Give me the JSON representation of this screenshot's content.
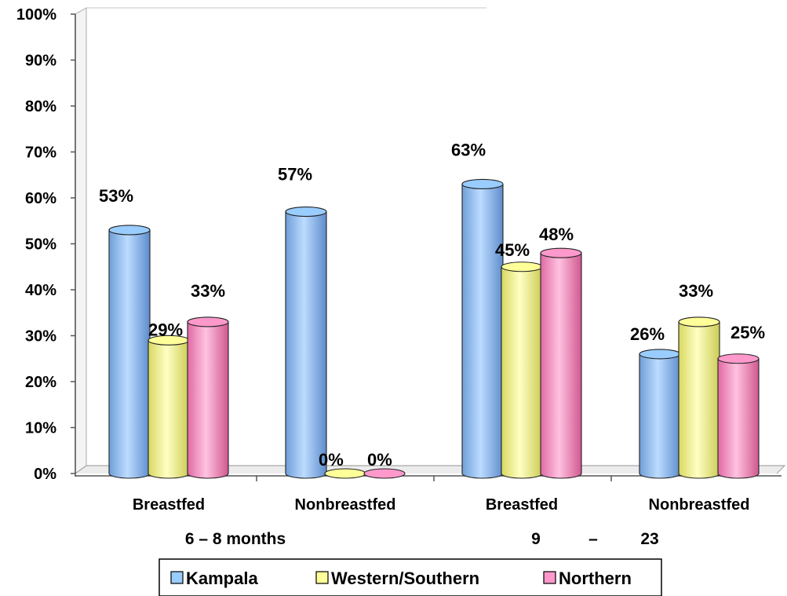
{
  "chart_data": {
    "type": "bar",
    "categories": [
      "Breastfed",
      "Nonbreastfed",
      "Breastfed",
      "Nonbreastfed"
    ],
    "category_groups": [
      {
        "label": "6 – 8 months",
        "categories": [
          0,
          1
        ]
      },
      {
        "label_parts": [
          "9",
          "–",
          "23"
        ],
        "categories": [
          2,
          3
        ]
      }
    ],
    "series": [
      {
        "name": "Kampala",
        "values": [
          53,
          57,
          63,
          26
        ],
        "labels": [
          "53%",
          "57%",
          "63%",
          "26%"
        ],
        "color": "#99ccff"
      },
      {
        "name": "Western/Southern",
        "values": [
          29,
          0,
          45,
          33
        ],
        "labels": [
          "29%",
          "0%",
          "45%",
          "33%"
        ],
        "color": "#ffff99"
      },
      {
        "name": "Northern",
        "values": [
          33,
          0,
          48,
          25
        ],
        "labels": [
          "33%",
          "0%",
          "48%",
          "25%"
        ],
        "color": "#ff99cc"
      }
    ],
    "y_ticks": [
      "0%",
      "10%",
      "20%",
      "30%",
      "40%",
      "50%",
      "60%",
      "70%",
      "80%",
      "90%",
      "100%"
    ],
    "ylim": [
      0,
      100
    ],
    "legend_position": "bottom",
    "grid": false,
    "bar_style": "3d-cylinder"
  }
}
